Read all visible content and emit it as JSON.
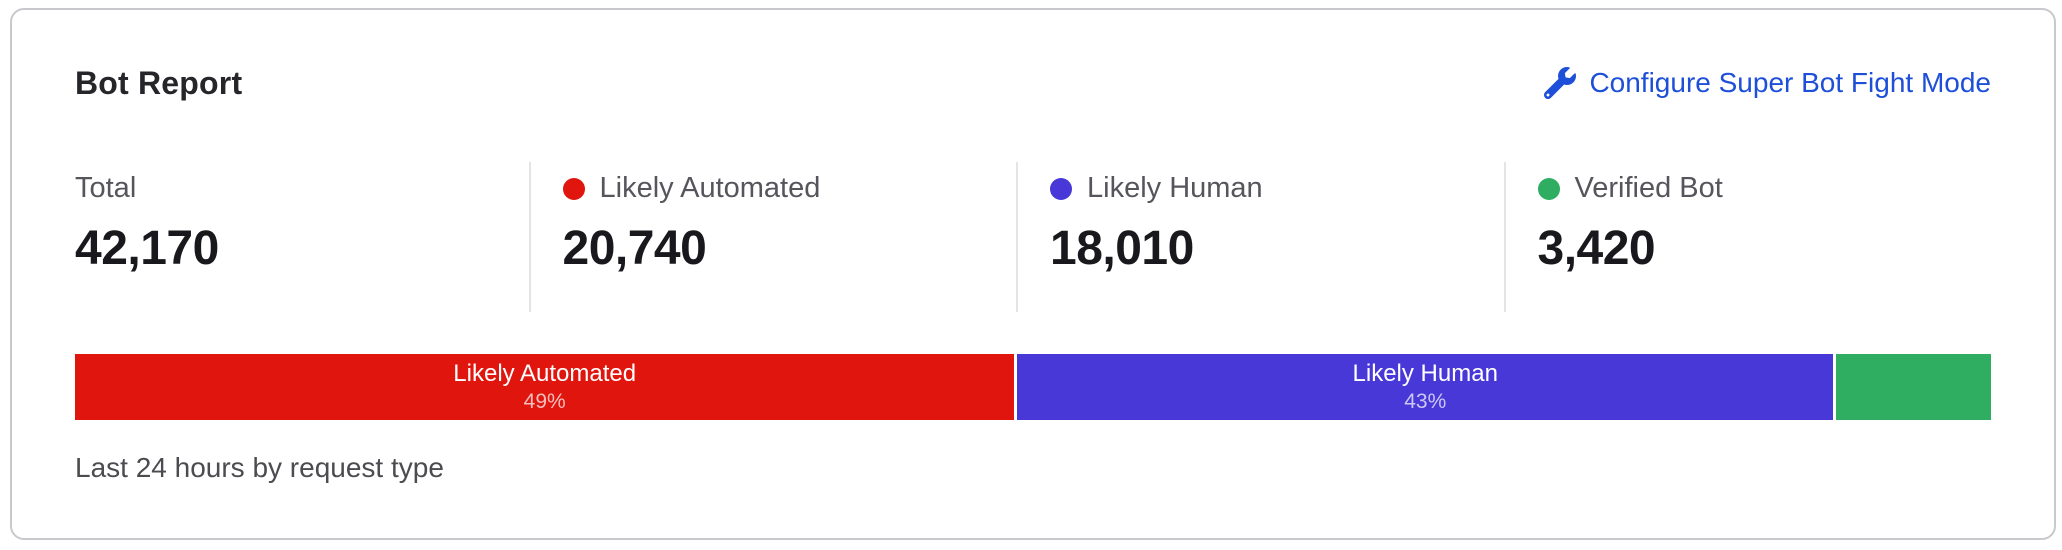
{
  "card": {
    "title": "Bot Report",
    "action_link": {
      "label": "Configure Super Bot Fight Mode",
      "icon": "wrench-icon",
      "color": "#1d4fd8"
    },
    "stats": [
      {
        "label": "Total",
        "value": "42,170",
        "dot_color": null
      },
      {
        "label": "Likely Automated",
        "value": "20,740",
        "dot_color": "#e0150d"
      },
      {
        "label": "Likely Human",
        "value": "18,010",
        "dot_color": "#4838d8"
      },
      {
        "label": "Verified Bot",
        "value": "3,420",
        "dot_color": "#2fad60"
      }
    ],
    "footnote": "Last 24 hours by request type"
  },
  "chart_data": {
    "type": "bar",
    "variant": "horizontal-stacked",
    "title": "Bot Report",
    "subtitle": "Last 24 hours by request type",
    "total": 42170,
    "categories": [
      "Likely Automated",
      "Likely Human",
      "Verified Bot"
    ],
    "values": [
      20740,
      18010,
      3420
    ],
    "percents": [
      49,
      43,
      8
    ],
    "colors": [
      "#e0150d",
      "#4838d8",
      "#2fad60"
    ],
    "segments": [
      {
        "name": "Likely Automated",
        "percent_label": "49%",
        "show_label": true
      },
      {
        "name": "Likely Human",
        "percent_label": "43%",
        "show_label": true
      },
      {
        "name": "Verified Bot",
        "percent_label": "8%",
        "show_label": false
      }
    ],
    "legend_position": "top",
    "axis": "none"
  }
}
